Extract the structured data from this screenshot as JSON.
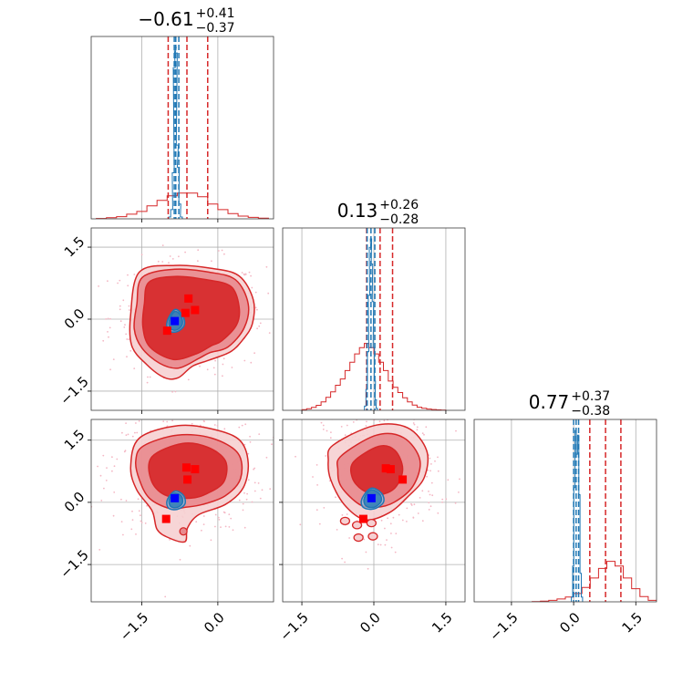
{
  "chart_data": {
    "type": "scatter",
    "subtype": "corner-plot",
    "parameters": 3,
    "grid": true,
    "colors": {
      "red_samples": "#d62728",
      "blue_samples": "#1f77b4",
      "red_marker": "#ff0000",
      "blue_marker": "#0000ff",
      "scatter_dots": "#f4b7c4"
    },
    "titles": [
      {
        "value": "−0.61",
        "upper": "+0.41",
        "lower": "−0.37"
      },
      {
        "value": "0.13",
        "upper": "+0.26",
        "lower": "−0.28"
      },
      {
        "value": "0.77",
        "upper": "+0.37",
        "lower": "−0.38"
      }
    ],
    "axes": {
      "x": {
        "range": [
          -2.5,
          1.1
        ],
        "ticks": [
          -1.5,
          0.0
        ],
        "tick_labels": [
          "−1.5",
          "0.0"
        ]
      },
      "y": {
        "range": [
          -1.9,
          1.9
        ],
        "ticks": [
          -1.5,
          0.0,
          1.5
        ],
        "tick_labels": [
          "−1.5",
          "0.0",
          "1.5"
        ]
      },
      "z": {
        "range": [
          -2.4,
          2.0
        ],
        "ticks": [
          -1.5,
          0.0,
          1.5
        ],
        "tick_labels": [
          "−1.5",
          "0.0",
          "1.5"
        ]
      }
    },
    "quantiles": {
      "red": [
        [
          -0.98,
          -0.61,
          -0.2
        ],
        [
          -0.15,
          0.13,
          0.39
        ],
        [
          0.39,
          0.77,
          1.14
        ]
      ],
      "blue": [
        [
          -0.86,
          -0.83,
          -0.77
        ],
        [
          -0.14,
          -0.06,
          0.02
        ],
        [
          0.0,
          0.06,
          0.12
        ]
      ]
    },
    "histograms": {
      "red_x": {
        "bin_centers": [
          -2.3,
          -2.1,
          -1.9,
          -1.7,
          -1.5,
          -1.3,
          -1.1,
          -0.9,
          -0.7,
          -0.5,
          -0.3,
          -0.1,
          0.1,
          0.3,
          0.5,
          0.7,
          0.9
        ],
        "counts": [
          0.002,
          0.006,
          0.012,
          0.025,
          0.04,
          0.07,
          0.1,
          0.125,
          0.14,
          0.14,
          0.12,
          0.08,
          0.05,
          0.028,
          0.015,
          0.008,
          0.004
        ]
      },
      "blue_x": {
        "bin_centers": [
          -0.95,
          -0.91,
          -0.88,
          -0.86,
          -0.84,
          -0.82,
          -0.8,
          -0.78,
          -0.75,
          -0.72
        ],
        "counts": [
          0.01,
          0.05,
          0.25,
          0.82,
          0.93,
          0.9,
          0.4,
          0.28,
          0.08,
          0.01
        ]
      },
      "red_y": {
        "bin_centers": [
          -1.45,
          -1.35,
          -1.25,
          -1.15,
          -1.05,
          -0.95,
          -0.85,
          -0.75,
          -0.65,
          -0.55,
          -0.45,
          -0.35,
          -0.25,
          -0.15,
          -0.05,
          0.05,
          0.15,
          0.25,
          0.35,
          0.45,
          0.55,
          0.65,
          0.75,
          0.85,
          0.95,
          1.05,
          1.15,
          1.25,
          1.35,
          1.45
        ],
        "counts": [
          0.003,
          0.008,
          0.014,
          0.024,
          0.04,
          0.062,
          0.088,
          0.12,
          0.15,
          0.19,
          0.23,
          0.27,
          0.3,
          0.32,
          0.3,
          0.27,
          0.23,
          0.19,
          0.14,
          0.11,
          0.085,
          0.06,
          0.04,
          0.025,
          0.015,
          0.01,
          0.006,
          0.004,
          0.002,
          0.001
        ]
      },
      "blue_y": {
        "bin_centers": [
          -0.18,
          -0.15,
          -0.12,
          -0.1,
          -0.08,
          -0.06,
          -0.04,
          -0.02,
          0.0,
          0.02,
          0.04,
          0.06
        ],
        "counts": [
          0.02,
          0.1,
          0.28,
          0.55,
          0.78,
          0.82,
          0.7,
          0.52,
          0.3,
          0.14,
          0.05,
          0.01
        ]
      },
      "red_z": {
        "bin_centers": [
          -0.9,
          -0.7,
          -0.5,
          -0.3,
          -0.1,
          0.1,
          0.3,
          0.5,
          0.7,
          0.9,
          1.1,
          1.3,
          1.5,
          1.7,
          1.9
        ],
        "counts": [
          0.001,
          0.003,
          0.006,
          0.012,
          0.02,
          0.035,
          0.06,
          0.1,
          0.14,
          0.17,
          0.15,
          0.1,
          0.055,
          0.022,
          0.006
        ]
      },
      "blue_z": {
        "bin_centers": [
          -0.04,
          -0.01,
          0.02,
          0.05,
          0.08,
          0.11,
          0.14,
          0.17,
          0.2
        ],
        "counts": [
          0.02,
          0.15,
          0.48,
          0.72,
          0.62,
          0.7,
          0.45,
          0.12,
          0.02
        ]
      }
    },
    "contours": {
      "xy_red": [
        {
          "level": 0.39,
          "points": [
            [
              -1.36,
              0.77
            ],
            [
              -0.85,
              0.89
            ],
            [
              -0.22,
              0.82
            ],
            [
              0.26,
              0.68
            ],
            [
              0.42,
              0.26
            ],
            [
              0.37,
              -0.12
            ],
            [
              0.08,
              -0.45
            ],
            [
              -0.12,
              -0.55
            ],
            [
              -0.42,
              -0.72
            ],
            [
              -0.88,
              -0.84
            ],
            [
              -1.34,
              -0.58
            ],
            [
              -1.48,
              -0.16
            ],
            [
              -1.45,
              0.32
            ]
          ]
        },
        {
          "level": 0.86,
          "points": [
            [
              -1.49,
              0.87
            ],
            [
              -0.85,
              1.04
            ],
            [
              -0.18,
              0.98
            ],
            [
              0.35,
              0.82
            ],
            [
              0.6,
              0.32
            ],
            [
              0.52,
              -0.18
            ],
            [
              0.2,
              -0.58
            ],
            [
              -0.16,
              -0.7
            ],
            [
              -0.38,
              -0.82
            ],
            [
              -0.78,
              -1.02
            ],
            [
              -1.15,
              -0.92
            ],
            [
              -1.5,
              -0.6
            ],
            [
              -1.65,
              -0.2
            ],
            [
              -1.6,
              0.3
            ]
          ]
        },
        {
          "level": 0.99,
          "points": [
            [
              -1.55,
              0.98
            ],
            [
              -0.85,
              1.12
            ],
            [
              -0.13,
              1.06
            ],
            [
              0.42,
              0.9
            ],
            [
              0.7,
              0.4
            ],
            [
              0.68,
              -0.1
            ],
            [
              0.5,
              -0.42
            ],
            [
              0.25,
              -0.68
            ],
            [
              -0.16,
              -0.85
            ],
            [
              -0.5,
              -0.98
            ],
            [
              -0.78,
              -1.22
            ],
            [
              -1.05,
              -1.22
            ],
            [
              -1.4,
              -0.95
            ],
            [
              -1.7,
              -0.55
            ],
            [
              -1.72,
              0.1
            ]
          ]
        }
      ],
      "xy_blue": [
        {
          "level": 0.39,
          "points": [
            [
              -0.96,
              -0.03
            ],
            [
              -0.85,
              0.16
            ],
            [
              -0.73,
              0.07
            ],
            [
              -0.7,
              -0.1
            ],
            [
              -0.8,
              -0.22
            ],
            [
              -0.93,
              -0.2
            ]
          ]
        },
        {
          "level": 0.86,
          "points": [
            [
              -1.0,
              -0.05
            ],
            [
              -0.85,
              0.2
            ],
            [
              -0.7,
              0.08
            ],
            [
              -0.66,
              -0.12
            ],
            [
              -0.8,
              -0.26
            ],
            [
              -0.97,
              -0.24
            ]
          ]
        }
      ],
      "xz_red": [
        {
          "level": 0.39,
          "points": [
            [
              -1.3,
              1.1
            ],
            [
              -0.7,
              1.42
            ],
            [
              -0.2,
              1.33
            ],
            [
              0.15,
              1.0
            ],
            [
              0.12,
              0.5
            ],
            [
              -0.2,
              0.22
            ],
            [
              -0.55,
              0.1
            ],
            [
              -1.05,
              0.18
            ],
            [
              -1.32,
              0.55
            ]
          ]
        },
        {
          "level": 0.86,
          "points": [
            [
              -1.47,
              1.36
            ],
            [
              -0.8,
              1.62
            ],
            [
              -0.12,
              1.55
            ],
            [
              0.4,
              1.18
            ],
            [
              0.45,
              0.58
            ],
            [
              0.15,
              0.16
            ],
            [
              -0.3,
              -0.05
            ],
            [
              -0.65,
              -0.12
            ],
            [
              -0.95,
              -0.15
            ],
            [
              -1.35,
              0.1
            ],
            [
              -1.55,
              0.55
            ],
            [
              -1.62,
              1.0
            ]
          ]
        },
        {
          "level": 0.99,
          "points": [
            [
              -1.55,
              1.55
            ],
            [
              -0.78,
              1.85
            ],
            [
              -0.08,
              1.76
            ],
            [
              0.43,
              1.5
            ],
            [
              0.6,
              0.95
            ],
            [
              0.5,
              0.35
            ],
            [
              0.15,
              -0.05
            ],
            [
              -0.38,
              -0.3
            ],
            [
              -0.6,
              -0.62
            ],
            [
              -0.65,
              -0.95
            ],
            [
              -0.98,
              -0.85
            ],
            [
              -1.2,
              -0.65
            ],
            [
              -1.3,
              -0.2
            ],
            [
              -1.6,
              0.3
            ],
            [
              -1.72,
              0.85
            ]
          ]
        }
      ],
      "xz_blue": [
        {
          "level": 0.39,
          "points": [
            [
              -0.96,
              0.07
            ],
            [
              -0.85,
              0.22
            ],
            [
              -0.72,
              0.15
            ],
            [
              -0.7,
              -0.02
            ],
            [
              -0.8,
              -0.12
            ],
            [
              -0.93,
              -0.1
            ]
          ]
        },
        {
          "level": 0.86,
          "points": [
            [
              -1.0,
              0.05
            ],
            [
              -0.85,
              0.27
            ],
            [
              -0.68,
              0.17
            ],
            [
              -0.65,
              -0.04
            ],
            [
              -0.8,
              -0.17
            ],
            [
              -0.97,
              -0.14
            ]
          ]
        }
      ],
      "yz_red": [
        {
          "level": 0.39,
          "points": [
            [
              -0.42,
              0.98
            ],
            [
              0.1,
              1.35
            ],
            [
              0.44,
              1.25
            ],
            [
              0.6,
              0.8
            ],
            [
              0.44,
              0.35
            ],
            [
              0.1,
              0.18
            ],
            [
              -0.24,
              0.3
            ],
            [
              -0.45,
              0.6
            ]
          ]
        },
        {
          "level": 0.86,
          "points": [
            [
              -0.68,
              1.12
            ],
            [
              0.05,
              1.62
            ],
            [
              0.62,
              1.56
            ],
            [
              0.96,
              1.02
            ],
            [
              0.82,
              0.4
            ],
            [
              0.42,
              0.0
            ],
            [
              0.05,
              -0.12
            ],
            [
              -0.3,
              -0.05
            ],
            [
              -0.68,
              0.38
            ],
            [
              -0.75,
              0.78
            ]
          ]
        },
        {
          "level": 0.99,
          "points": [
            [
              -0.85,
              1.38
            ],
            [
              0.0,
              1.85
            ],
            [
              0.7,
              1.8
            ],
            [
              1.1,
              1.25
            ],
            [
              1.05,
              0.6
            ],
            [
              0.72,
              0.15
            ],
            [
              0.32,
              -0.25
            ],
            [
              -0.18,
              -0.42
            ],
            [
              -0.62,
              -0.05
            ],
            [
              -0.9,
              0.55
            ],
            [
              -0.95,
              1.0
            ]
          ]
        }
      ],
      "yz_blue": [
        {
          "level": 0.39,
          "points": [
            [
              -0.2,
              0.1
            ],
            [
              -0.06,
              0.3
            ],
            [
              0.12,
              0.2
            ],
            [
              0.15,
              0.02
            ],
            [
              0.0,
              -0.12
            ],
            [
              -0.17,
              -0.08
            ]
          ]
        },
        {
          "level": 0.86,
          "points": [
            [
              -0.25,
              0.08
            ],
            [
              -0.06,
              0.34
            ],
            [
              0.16,
              0.22
            ],
            [
              0.2,
              0.0
            ],
            [
              0.0,
              -0.16
            ],
            [
              -0.22,
              -0.12
            ]
          ]
        }
      ]
    },
    "markers": {
      "xy_red": [
        [
          -0.58,
          0.43
        ],
        [
          -0.45,
          0.19
        ],
        [
          -0.64,
          0.13
        ],
        [
          -1.0,
          -0.24
        ]
      ],
      "xy_blue": [
        [
          -0.85,
          -0.04
        ]
      ],
      "xz_red": [
        [
          -0.62,
          0.84
        ],
        [
          -0.45,
          0.8
        ],
        [
          -0.6,
          0.55
        ],
        [
          -1.02,
          -0.4
        ]
      ],
      "xz_blue": [
        [
          -0.85,
          0.1
        ]
      ],
      "yz_red": [
        [
          0.25,
          0.82
        ],
        [
          0.35,
          0.8
        ],
        [
          0.6,
          0.55
        ],
        [
          -0.22,
          -0.4
        ]
      ],
      "yz_blue": [
        [
          -0.05,
          0.1
        ]
      ]
    }
  }
}
